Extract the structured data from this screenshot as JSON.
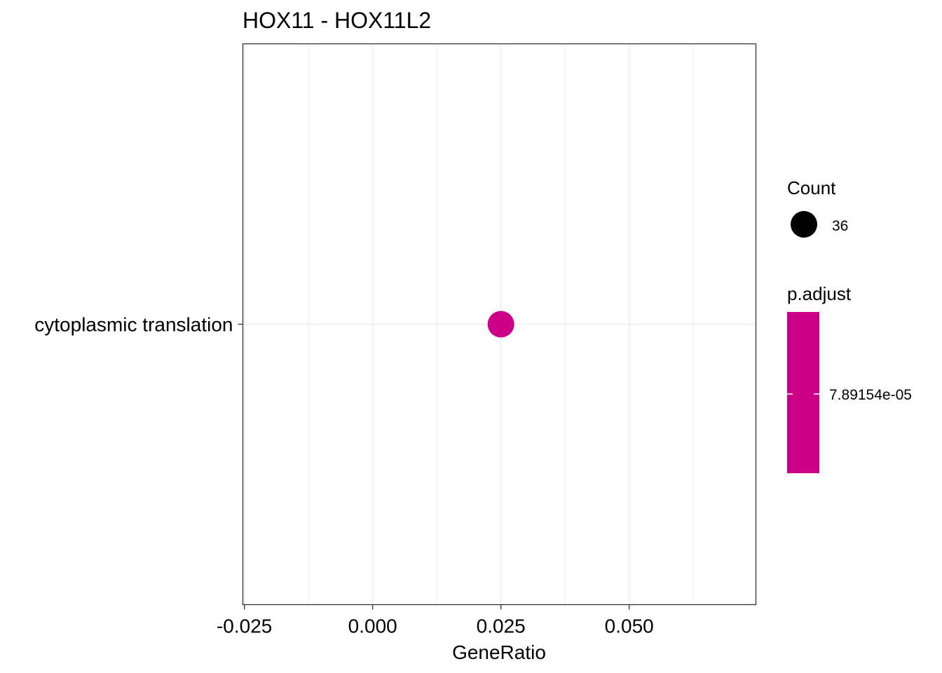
{
  "chart_data": {
    "type": "scatter",
    "title": "HOX11 - HOX11L2",
    "xlabel": "GeneRatio",
    "ylabel": "",
    "categories": [
      "cytoplasmic translation"
    ],
    "points": [
      {
        "category": "cytoplasmic translation",
        "x": 0.025,
        "count": 36,
        "p_adjust": 7.89154e-05
      }
    ],
    "xlim": [
      -0.0253,
      0.0747
    ],
    "x_ticks": [
      -0.025,
      0.0,
      0.025,
      0.05
    ],
    "x_tick_labels": [
      "-0.025",
      "0.000",
      "0.025",
      "0.050"
    ],
    "x_minor_ticks": [
      -0.0125,
      0.0125,
      0.0375,
      0.0625
    ],
    "grid": true,
    "point_color": "#CC0088",
    "legend_position": "right",
    "legend": {
      "size": {
        "title": "Count",
        "entries": [
          {
            "label": "36",
            "value": 36
          }
        ]
      },
      "color": {
        "title": "p.adjust",
        "labels": [
          "7.89154e-05"
        ],
        "color": "#CC0088"
      }
    }
  }
}
